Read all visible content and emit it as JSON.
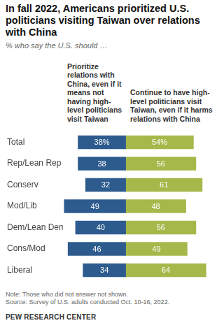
{
  "chart_data": {
    "type": "bar",
    "orientation": "horizontal",
    "title": "In fall 2022, Americans prioritized U.S. politicians visiting Taiwan over relations with China",
    "subtitle": "% who say the U.S. should …",
    "categories": [
      "Total",
      "Rep/Lean Rep",
      "Conserv",
      "Mod/Lib",
      "Dem/Lean Dem",
      "Cons/Mod",
      "Liberal"
    ],
    "series": [
      {
        "name": "Prioritize relations with China, even if it means not having high-level politicians visit Taiwan",
        "color": "#2d5b8e",
        "values": [
          38,
          38,
          32,
          49,
          40,
          46,
          34
        ],
        "value_labels": [
          "38%",
          "38",
          "32",
          "49",
          "40",
          "46",
          "34"
        ]
      },
      {
        "name": "Continue to have high-level politicians visit Taiwan, even if it harms relations with China",
        "color": "#a6b84a",
        "values": [
          54,
          56,
          61,
          48,
          56,
          49,
          64
        ],
        "value_labels": [
          "54%",
          "56",
          "61",
          "48",
          "56",
          "49",
          "64"
        ]
      }
    ],
    "xlim": [
      -50,
      70
    ],
    "tick_labels": "y",
    "grid": false,
    "data_labels": true,
    "notes": [
      "Note: Those who did not answer not shown.",
      "Source: Survey of U.S. adults conducted Oct. 10-16, 2022."
    ],
    "credit": "PEW RESEARCH CENTER"
  }
}
